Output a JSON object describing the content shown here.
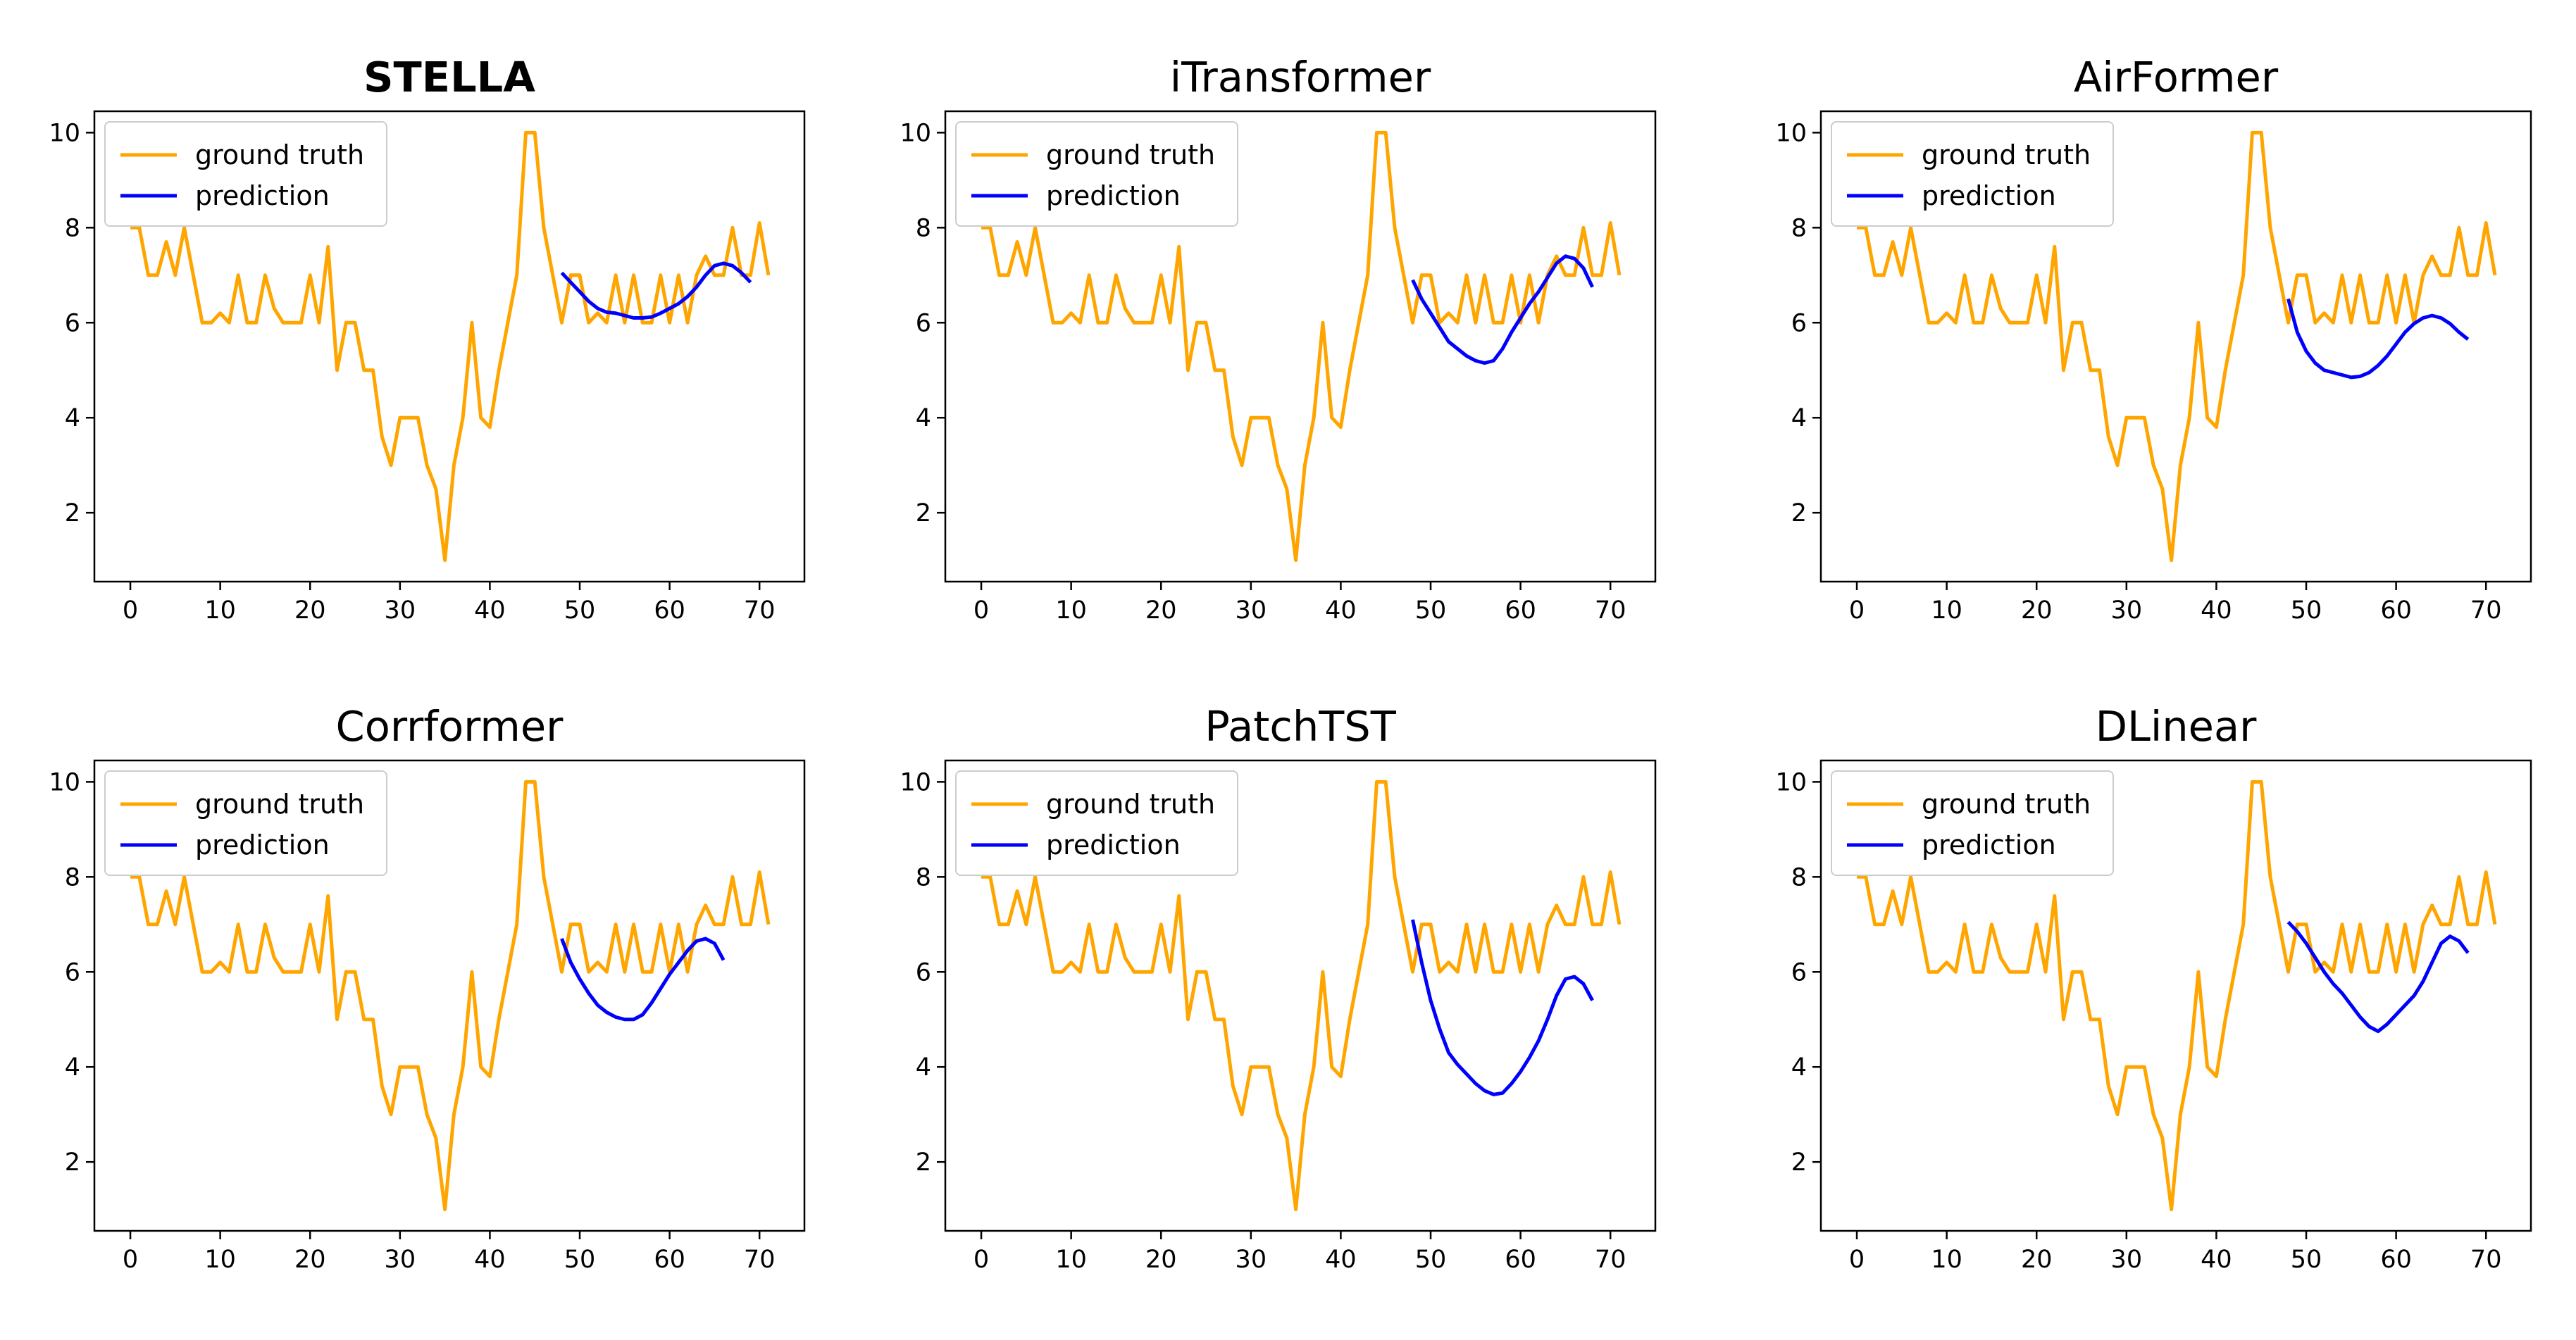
{
  "colors": {
    "ground_truth": "#ffa500",
    "prediction": "#0000ff",
    "legend_border": "#cccccc"
  },
  "chart_data": [
    {
      "type": "line",
      "title": "STELLA",
      "title_bold": true,
      "xlim": [
        -4,
        75
      ],
      "ylim": [
        0.55,
        10.45
      ],
      "xticks": [
        0,
        10,
        20,
        30,
        40,
        50,
        60,
        70
      ],
      "yticks": [
        2,
        4,
        6,
        8,
        10
      ],
      "legend": "top-left",
      "grid": false,
      "series": [
        {
          "name": "ground truth",
          "color": "#ffa500",
          "x_start": 0,
          "values": [
            8,
            8,
            7,
            7,
            7.7,
            7,
            8,
            7,
            6,
            6,
            6.2,
            6,
            7,
            6,
            6,
            7,
            6.3,
            6,
            6,
            6,
            7,
            6,
            7.6,
            5,
            6,
            6,
            5,
            5,
            3.6,
            3,
            4,
            4,
            4,
            3,
            2.5,
            1,
            3,
            4,
            6,
            4,
            3.8,
            5,
            6,
            7,
            10,
            10,
            8,
            7,
            6,
            7,
            7,
            6,
            6.2,
            6,
            7,
            6,
            7,
            6,
            6,
            7,
            6,
            7,
            6,
            7,
            7.4,
            7,
            7,
            8,
            7,
            7,
            8.1,
            7
          ]
        },
        {
          "name": "prediction",
          "color": "#0000ff",
          "x_start": 48,
          "values": [
            7.05,
            6.85,
            6.65,
            6.45,
            6.3,
            6.22,
            6.2,
            6.15,
            6.1,
            6.1,
            6.12,
            6.2,
            6.3,
            6.4,
            6.55,
            6.75,
            7.0,
            7.2,
            7.25,
            7.2,
            7.05,
            6.85
          ]
        }
      ]
    },
    {
      "type": "line",
      "title": "iTransformer",
      "title_bold": false,
      "xlim": [
        -4,
        75
      ],
      "ylim": [
        0.55,
        10.45
      ],
      "xticks": [
        0,
        10,
        20,
        30,
        40,
        50,
        60,
        70
      ],
      "yticks": [
        2,
        4,
        6,
        8,
        10
      ],
      "legend": "top-left",
      "grid": false,
      "series": [
        {
          "name": "ground truth",
          "color": "#ffa500",
          "x_start": 0,
          "values": [
            8,
            8,
            7,
            7,
            7.7,
            7,
            8,
            7,
            6,
            6,
            6.2,
            6,
            7,
            6,
            6,
            7,
            6.3,
            6,
            6,
            6,
            7,
            6,
            7.6,
            5,
            6,
            6,
            5,
            5,
            3.6,
            3,
            4,
            4,
            4,
            3,
            2.5,
            1,
            3,
            4,
            6,
            4,
            3.8,
            5,
            6,
            7,
            10,
            10,
            8,
            7,
            6,
            7,
            7,
            6,
            6.2,
            6,
            7,
            6,
            7,
            6,
            6,
            7,
            6,
            7,
            6,
            7,
            7.4,
            7,
            7,
            8,
            7,
            7,
            8.1,
            7
          ]
        },
        {
          "name": "prediction",
          "color": "#0000ff",
          "x_start": 48,
          "values": [
            6.9,
            6.5,
            6.2,
            5.9,
            5.6,
            5.45,
            5.3,
            5.2,
            5.15,
            5.2,
            5.45,
            5.8,
            6.1,
            6.4,
            6.65,
            6.95,
            7.25,
            7.4,
            7.35,
            7.15,
            6.75
          ]
        }
      ]
    },
    {
      "type": "line",
      "title": "AirFormer",
      "title_bold": false,
      "xlim": [
        -4,
        75
      ],
      "ylim": [
        0.55,
        10.45
      ],
      "xticks": [
        0,
        10,
        20,
        30,
        40,
        50,
        60,
        70
      ],
      "yticks": [
        2,
        4,
        6,
        8,
        10
      ],
      "legend": "top-left",
      "grid": false,
      "series": [
        {
          "name": "ground truth",
          "color": "#ffa500",
          "x_start": 0,
          "values": [
            8,
            8,
            7,
            7,
            7.7,
            7,
            8,
            7,
            6,
            6,
            6.2,
            6,
            7,
            6,
            6,
            7,
            6.3,
            6,
            6,
            6,
            7,
            6,
            7.6,
            5,
            6,
            6,
            5,
            5,
            3.6,
            3,
            4,
            4,
            4,
            3,
            2.5,
            1,
            3,
            4,
            6,
            4,
            3.8,
            5,
            6,
            7,
            10,
            10,
            8,
            7,
            6,
            7,
            7,
            6,
            6.2,
            6,
            7,
            6,
            7,
            6,
            6,
            7,
            6,
            7,
            6,
            7,
            7.4,
            7,
            7,
            8,
            7,
            7,
            8.1,
            7
          ]
        },
        {
          "name": "prediction",
          "color": "#0000ff",
          "x_start": 48,
          "values": [
            6.5,
            5.8,
            5.4,
            5.15,
            5.0,
            4.95,
            4.9,
            4.85,
            4.87,
            4.95,
            5.1,
            5.3,
            5.55,
            5.8,
            5.98,
            6.1,
            6.15,
            6.1,
            5.98,
            5.8,
            5.65
          ]
        }
      ]
    },
    {
      "type": "line",
      "title": "Corrformer",
      "title_bold": false,
      "xlim": [
        -4,
        75
      ],
      "ylim": [
        0.55,
        10.45
      ],
      "xticks": [
        0,
        10,
        20,
        30,
        40,
        50,
        60,
        70
      ],
      "yticks": [
        2,
        4,
        6,
        8,
        10
      ],
      "legend": "top-left",
      "grid": false,
      "series": [
        {
          "name": "ground truth",
          "color": "#ffa500",
          "x_start": 0,
          "values": [
            8,
            8,
            7,
            7,
            7.7,
            7,
            8,
            7,
            6,
            6,
            6.2,
            6,
            7,
            6,
            6,
            7,
            6.3,
            6,
            6,
            6,
            7,
            6,
            7.6,
            5,
            6,
            6,
            5,
            5,
            3.6,
            3,
            4,
            4,
            4,
            3,
            2.5,
            1,
            3,
            4,
            6,
            4,
            3.8,
            5,
            6,
            7,
            10,
            10,
            8,
            7,
            6,
            7,
            7,
            6,
            6.2,
            6,
            7,
            6,
            7,
            6,
            6,
            7,
            6,
            7,
            6,
            7,
            7.4,
            7,
            7,
            8,
            7,
            7,
            8.1,
            7
          ]
        },
        {
          "name": "prediction",
          "color": "#0000ff",
          "x_start": 48,
          "values": [
            6.7,
            6.2,
            5.85,
            5.55,
            5.3,
            5.15,
            5.05,
            5.0,
            5.0,
            5.1,
            5.35,
            5.65,
            5.95,
            6.2,
            6.45,
            6.65,
            6.7,
            6.6,
            6.25
          ]
        }
      ]
    },
    {
      "type": "line",
      "title": "PatchTST",
      "title_bold": false,
      "xlim": [
        -4,
        75
      ],
      "ylim": [
        0.55,
        10.45
      ],
      "xticks": [
        0,
        10,
        20,
        30,
        40,
        50,
        60,
        70
      ],
      "yticks": [
        2,
        4,
        6,
        8,
        10
      ],
      "legend": "top-left",
      "grid": false,
      "series": [
        {
          "name": "ground truth",
          "color": "#ffa500",
          "x_start": 0,
          "values": [
            8,
            8,
            7,
            7,
            7.7,
            7,
            8,
            7,
            6,
            6,
            6.2,
            6,
            7,
            6,
            6,
            7,
            6.3,
            6,
            6,
            6,
            7,
            6,
            7.6,
            5,
            6,
            6,
            5,
            5,
            3.6,
            3,
            4,
            4,
            4,
            3,
            2.5,
            1,
            3,
            4,
            6,
            4,
            3.8,
            5,
            6,
            7,
            10,
            10,
            8,
            7,
            6,
            7,
            7,
            6,
            6.2,
            6,
            7,
            6,
            7,
            6,
            6,
            7,
            6,
            7,
            6,
            7,
            7.4,
            7,
            7,
            8,
            7,
            7,
            8.1,
            7
          ]
        },
        {
          "name": "prediction",
          "color": "#0000ff",
          "x_start": 48,
          "values": [
            7.1,
            6.2,
            5.4,
            4.8,
            4.3,
            4.05,
            3.85,
            3.65,
            3.5,
            3.42,
            3.45,
            3.65,
            3.9,
            4.2,
            4.55,
            5.0,
            5.5,
            5.85,
            5.9,
            5.75,
            5.4
          ]
        }
      ]
    },
    {
      "type": "line",
      "title": "DLinear",
      "title_bold": false,
      "xlim": [
        -4,
        75
      ],
      "ylim": [
        0.55,
        10.45
      ],
      "xticks": [
        0,
        10,
        20,
        30,
        40,
        50,
        60,
        70
      ],
      "yticks": [
        2,
        4,
        6,
        8,
        10
      ],
      "legend": "top-left",
      "grid": false,
      "series": [
        {
          "name": "ground truth",
          "color": "#ffa500",
          "x_start": 0,
          "values": [
            8,
            8,
            7,
            7,
            7.7,
            7,
            8,
            7,
            6,
            6,
            6.2,
            6,
            7,
            6,
            6,
            7,
            6.3,
            6,
            6,
            6,
            7,
            6,
            7.6,
            5,
            6,
            6,
            5,
            5,
            3.6,
            3,
            4,
            4,
            4,
            3,
            2.5,
            1,
            3,
            4,
            6,
            4,
            3.8,
            5,
            6,
            7,
            10,
            10,
            8,
            7,
            6,
            7,
            7,
            6,
            6.2,
            6,
            7,
            6,
            7,
            6,
            6,
            7,
            6,
            7,
            6,
            7,
            7.4,
            7,
            7,
            8,
            7,
            7,
            8.1,
            7
          ]
        },
        {
          "name": "prediction",
          "color": "#0000ff",
          "x_start": 48,
          "values": [
            7.05,
            6.85,
            6.6,
            6.3,
            6.0,
            5.75,
            5.55,
            5.3,
            5.05,
            4.85,
            4.75,
            4.9,
            5.1,
            5.3,
            5.5,
            5.8,
            6.2,
            6.6,
            6.75,
            6.65,
            6.4
          ]
        }
      ]
    }
  ]
}
